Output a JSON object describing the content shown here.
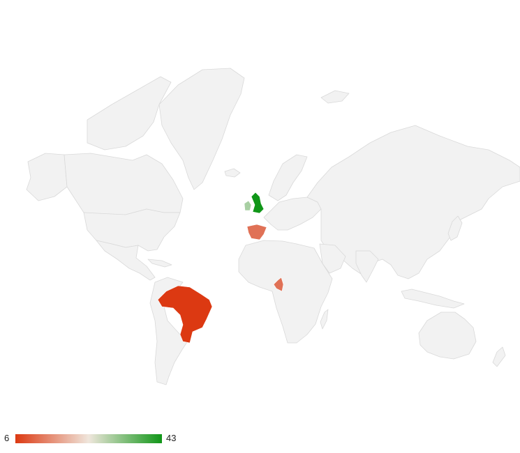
{
  "map": {
    "type": "choropleth-world",
    "color_axis": {
      "min": 6,
      "max": 43,
      "colors": [
        "#dc3912",
        "#efe6dc",
        "#109618"
      ]
    },
    "background_fill": "#f2f2f2",
    "border_color": "#d9d9d9",
    "regions": [
      {
        "id": "gbr",
        "value": 43
      },
      {
        "id": "irl",
        "value": 28
      },
      {
        "id": "esp",
        "value": 12
      },
      {
        "id": "cmr",
        "value": 12
      },
      {
        "id": "bra",
        "value": 6
      }
    ]
  },
  "legend": {
    "min_label": "6",
    "max_label": "43"
  }
}
